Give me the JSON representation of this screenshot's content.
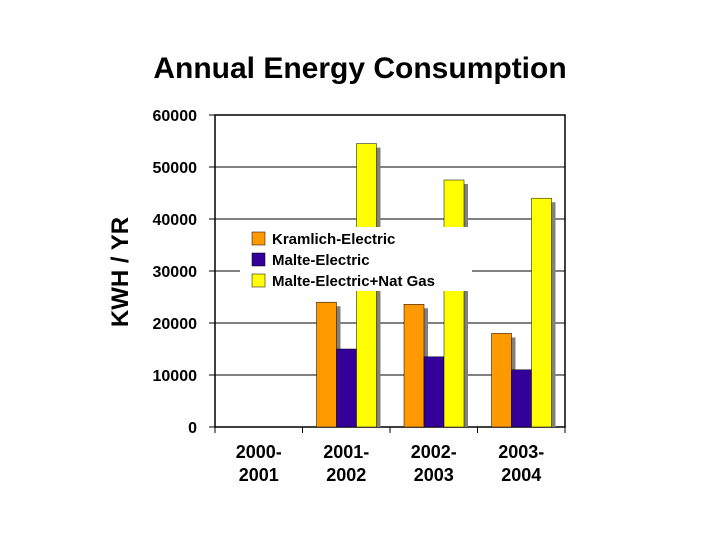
{
  "chart_data": {
    "type": "bar",
    "title": "Annual Energy Consumption",
    "ylabel": "KWH / YR",
    "xlabel": "",
    "ylim": [
      0,
      60000
    ],
    "yticks": [
      "60000",
      "50000",
      "40000",
      "30000",
      "20000",
      "10000",
      "0"
    ],
    "categories": [
      [
        "2000-",
        "2001"
      ],
      [
        "2001-",
        "2002"
      ],
      [
        "2002-",
        "2003"
      ],
      [
        "2003-",
        "2004"
      ]
    ],
    "series": [
      {
        "name": "Kramlich-Electric",
        "color": "#ff9900",
        "values": [
          null,
          24000,
          23600,
          18000
        ]
      },
      {
        "name": "Malte-Electric",
        "color": "#330099",
        "values": [
          null,
          15000,
          13500,
          11000
        ]
      },
      {
        "name": "Malte-Electric+Nat Gas",
        "color": "#ffff00",
        "values": [
          null,
          54500,
          47500,
          44000
        ]
      }
    ],
    "grid": true,
    "legend_position": "top-left inside plot"
  }
}
